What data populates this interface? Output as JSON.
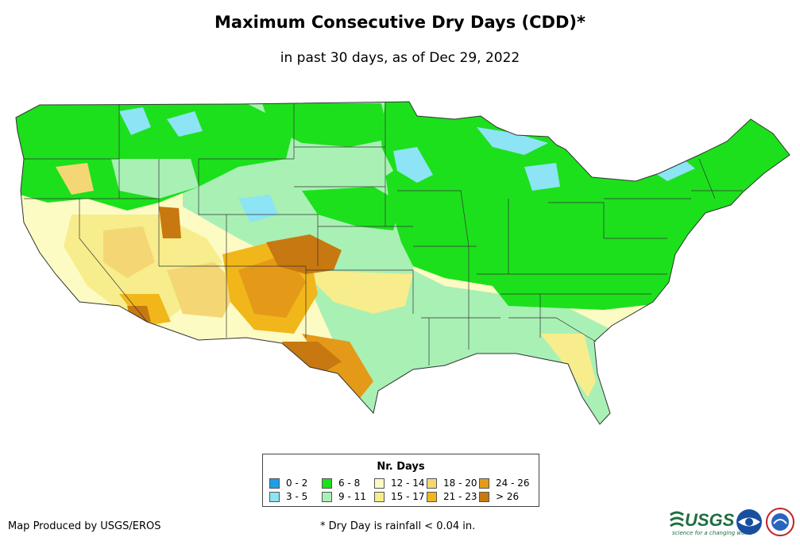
{
  "title": "Maximum Consecutive Dry Days (CDD)*",
  "subtitle": "in past 30 days, as of Dec 29, 2022",
  "legend": {
    "title": "Nr. Days",
    "items": [
      {
        "label": "0 - 2",
        "color": "#1f9ee8"
      },
      {
        "label": "3 - 5",
        "color": "#8ce4f4"
      },
      {
        "label": "6 - 8",
        "color": "#1ce01c"
      },
      {
        "label": "9 - 11",
        "color": "#a9f0b5"
      },
      {
        "label": "12 - 14",
        "color": "#fdfbc4"
      },
      {
        "label": "15 - 17",
        "color": "#f7ed8c"
      },
      {
        "label": "18 - 20",
        "color": "#f4d774"
      },
      {
        "label": "21 - 23",
        "color": "#f1b61a"
      },
      {
        "label": "24 - 26",
        "color": "#e49a18"
      },
      {
        "label": "> 26",
        "color": "#c87810"
      }
    ]
  },
  "footer": {
    "credit": "Map Produced by USGS/EROS",
    "note": "* Dry Day is rainfall < 0.04 in."
  },
  "logos": {
    "usgs_text": "USGS",
    "usgs_tagline": "science for a changing world"
  }
}
